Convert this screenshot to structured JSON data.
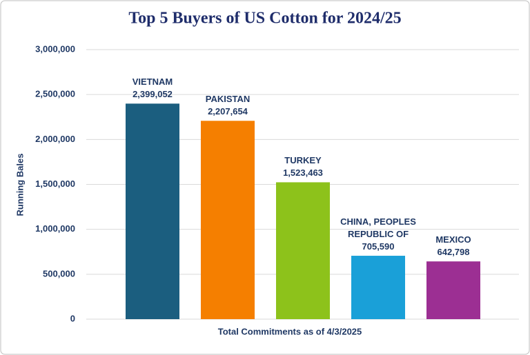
{
  "chart_data": {
    "type": "bar",
    "title": "Top 5 Buyers of US Cotton for 2024/25",
    "x_label": "Total Commitments as of 4/3/2025",
    "y_label": "Running Bales",
    "categories": [
      "VIETNAM",
      "PAKISTAN",
      "TURKEY",
      "CHINA, PEOPLES REPUBLIC OF",
      "MEXICO"
    ],
    "values": [
      2399052,
      2207654,
      1523463,
      705590,
      642798
    ],
    "value_labels": [
      "2,399,052",
      "2,207,654",
      "1,523,463",
      "705,590",
      "642,798"
    ],
    "colors": [
      "#1b5e7f",
      "#f57f00",
      "#8dc21b",
      "#1aa0d8",
      "#9c2f93"
    ],
    "ylim": [
      0,
      3000000
    ],
    "yticks": [
      0,
      {
        "value": 500000,
        "label": "500,000"
      },
      {
        "value": 1000000,
        "label": "1,000,000"
      },
      {
        "value": 1500000,
        "label": "1,500,000"
      },
      {
        "value": 2000000,
        "label": "2,000,000"
      },
      {
        "value": 2500000,
        "label": "2,500,000"
      },
      {
        "value": 3000000,
        "label": "3,000,000"
      }
    ],
    "grid": true
  }
}
